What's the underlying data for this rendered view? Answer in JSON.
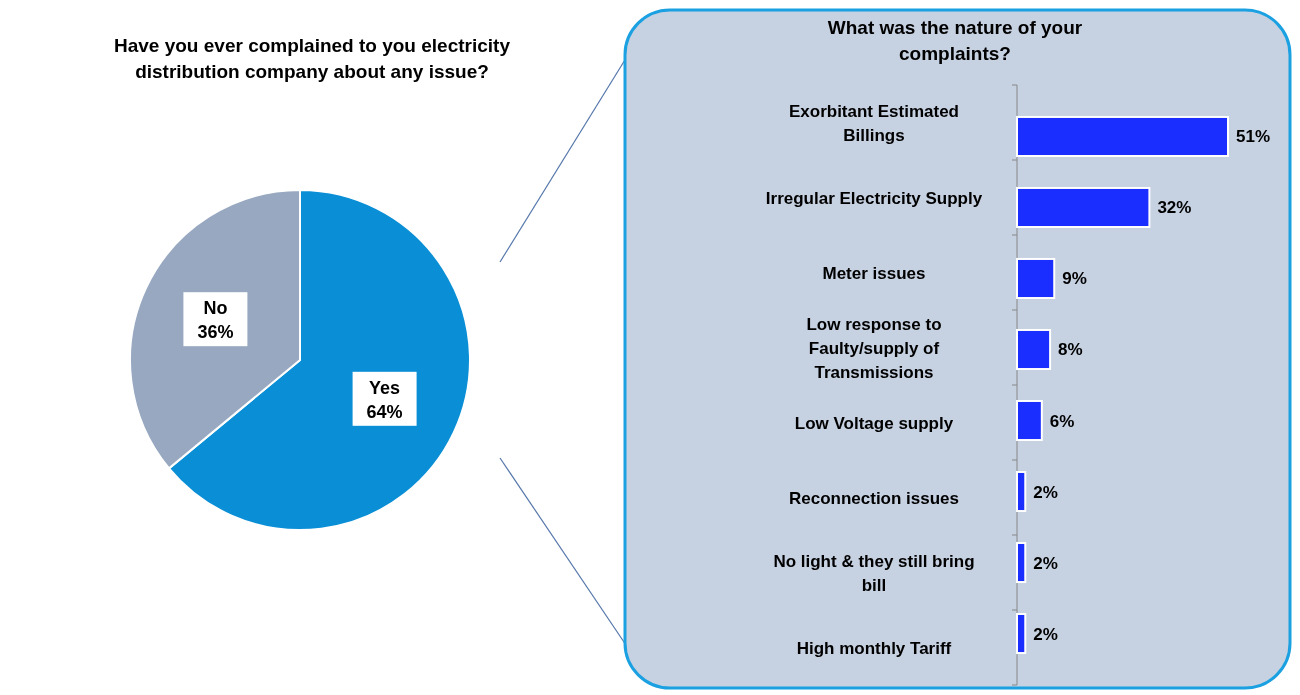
{
  "chart_data": [
    {
      "type": "pie",
      "title": "Have you ever complained to you electricity distribution company about any issue?",
      "categories": [
        "Yes",
        "No"
      ],
      "values": [
        64,
        36
      ],
      "colors": [
        "#0a8fd6",
        "#97a8c0"
      ],
      "value_labels": [
        "64%",
        "36%"
      ]
    },
    {
      "type": "bar",
      "orientation": "horizontal",
      "title": "What was the nature of your complaints?",
      "categories": [
        "Exorbitant Estimated Billings",
        "Irregular Electricity Supply",
        "Meter issues",
        "Low response to Faulty/supply of Transmissions",
        "Low Voltage supply",
        "Reconnection issues",
        "No light & they still bring bill",
        "High monthly Tariff"
      ],
      "values": [
        51,
        32,
        9,
        8,
        6,
        2,
        2,
        2
      ],
      "color": "#1a2eff",
      "value_labels": [
        "51%",
        "32%",
        "9%",
        "8%",
        "6%",
        "2%",
        "2%",
        "2%"
      ],
      "tick_labels": "y"
    }
  ]
}
